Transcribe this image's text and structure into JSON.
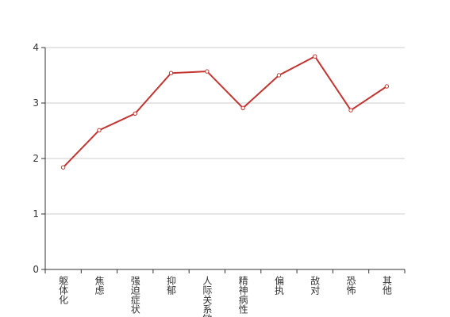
{
  "chart_data": {
    "type": "line",
    "categories": [
      "躯体化",
      "焦虑",
      "强迫症状",
      "抑郁",
      "人际关系敏感",
      "精神病性",
      "偏执",
      "敌对",
      "恐怖",
      "其他"
    ],
    "values": [
      1.84,
      2.51,
      2.81,
      3.54,
      3.57,
      2.91,
      3.5,
      3.84,
      2.87,
      3.3
    ],
    "color": "#c23531",
    "ylim": [
      0,
      4
    ],
    "yticks": [
      0,
      1,
      2,
      3,
      4
    ],
    "grid": true
  }
}
